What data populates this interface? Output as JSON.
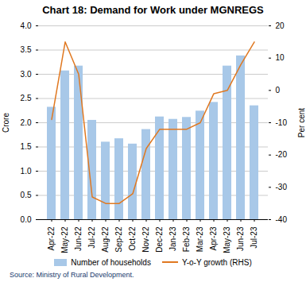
{
  "chart_data": {
    "type": "bar_line",
    "title": "Chart 18: Demand for Work under MGNREGS",
    "categories": [
      "Apr-22",
      "May-22",
      "Jun-22",
      "Jul-22",
      "Aug-22",
      "Sep-22",
      "Oct-22",
      "Nov-22",
      "Dec-22",
      "Jan-23",
      "Feb-23",
      "Mar-23",
      "Apr-23",
      "May-23",
      "Jun-23",
      "Jul-23"
    ],
    "series": [
      {
        "name": "Number of households",
        "type": "bar",
        "color": "#a8c8e8",
        "values": [
          2.32,
          3.07,
          3.17,
          2.05,
          1.6,
          1.67,
          1.56,
          1.86,
          2.12,
          2.07,
          2.11,
          2.24,
          2.42,
          3.17,
          3.38,
          2.35
        ]
      },
      {
        "name": "Y-o-Y growth (RHS)",
        "type": "line",
        "color": "#e07820",
        "axis": "y2",
        "values": [
          -9,
          15,
          5,
          -33,
          -35,
          -35,
          -32,
          -18,
          -12,
          -12,
          -12,
          -10,
          -1,
          0,
          8,
          15
        ]
      }
    ],
    "ylabel": "Crore",
    "y2label": "Per cent",
    "ylim": [
      0,
      4.0
    ],
    "yticks": [
      {
        "value": 0,
        "label": "0.0"
      },
      0.5,
      {
        "value": 1,
        "label": "1.0"
      },
      1.5,
      {
        "value": 2,
        "label": "2.0"
      },
      2.5,
      {
        "value": 3,
        "label": "3.0"
      },
      3.5,
      {
        "value": 4,
        "label": "4.0"
      }
    ],
    "y2lim": [
      -40,
      20
    ],
    "y2ticks": [
      -40,
      -30,
      -20,
      -10,
      0,
      10,
      20
    ],
    "grid": true,
    "legend": "bottom",
    "caption": "Source: Ministry of Rural Development."
  }
}
